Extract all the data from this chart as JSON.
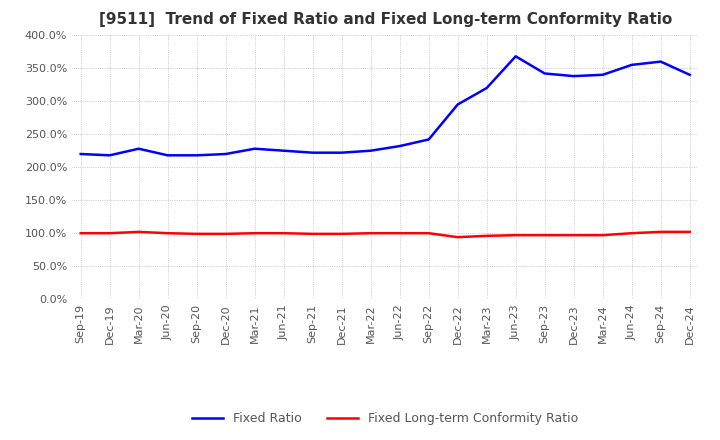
{
  "title": "[9511]  Trend of Fixed Ratio and Fixed Long-term Conformity Ratio",
  "x_labels": [
    "Sep-19",
    "Dec-19",
    "Mar-20",
    "Jun-20",
    "Sep-20",
    "Dec-20",
    "Mar-21",
    "Jun-21",
    "Sep-21",
    "Dec-21",
    "Mar-22",
    "Jun-22",
    "Sep-22",
    "Dec-22",
    "Mar-23",
    "Jun-23",
    "Sep-23",
    "Dec-23",
    "Mar-24",
    "Jun-24",
    "Sep-24",
    "Dec-24"
  ],
  "fixed_ratio": [
    220,
    218,
    228,
    218,
    218,
    220,
    228,
    225,
    222,
    222,
    225,
    232,
    242,
    295,
    320,
    368,
    342,
    338,
    340,
    355,
    360,
    340
  ],
  "fixed_lt_ratio": [
    100,
    100,
    102,
    100,
    99,
    99,
    100,
    100,
    99,
    99,
    100,
    100,
    100,
    94,
    96,
    97,
    97,
    97,
    97,
    100,
    102,
    102
  ],
  "fixed_ratio_color": "#0000FF",
  "fixed_lt_ratio_color": "#FF0000",
  "ylim_min": 0,
  "ylim_max": 400,
  "ytick_step": 50,
  "background_color": "#FFFFFF",
  "grid_color": "#AAAAAA",
  "legend_fixed_ratio": "Fixed Ratio",
  "legend_fixed_lt_ratio": "Fixed Long-term Conformity Ratio",
  "title_fontsize": 11,
  "tick_fontsize": 8,
  "legend_fontsize": 9
}
